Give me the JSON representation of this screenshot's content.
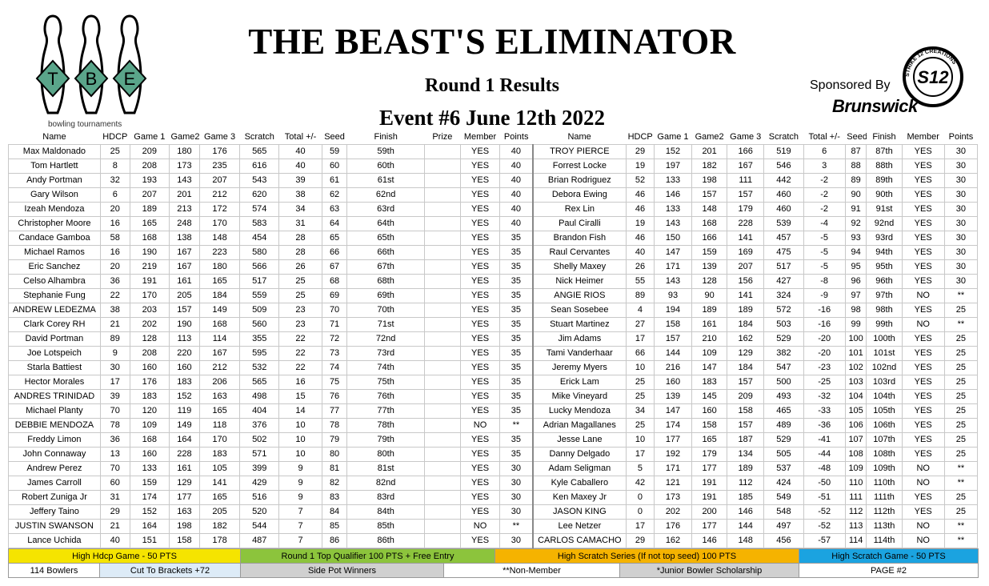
{
  "header": {
    "logo_text": "bowling tournaments",
    "logo_letters": [
      "T",
      "B",
      "E"
    ],
    "title": "THE BEAST'S ELIMINATOR",
    "subtitle": "Round 1 Results",
    "event": "Event #6 June 12th 2022",
    "sponsor_label": "Sponsored By",
    "sponsor_name": "Brunswick",
    "badge_text": "S12",
    "badge_ring_text": "STRIKE 12 CREATIONS"
  },
  "colors": {
    "logo_green": "#5aa58a",
    "yellow": "#f5e400",
    "green": "#8cc43c",
    "orange": "#f5b300",
    "blue": "#1ba3e0",
    "light_blue": "#ddebf7",
    "gray": "#d0d0d0"
  },
  "left_headers": [
    "Name",
    "HDCP",
    "Game 1",
    "Game2",
    "Game 3",
    "Scratch",
    "Total +/-",
    "Seed",
    "Finish",
    "Prize",
    "Member",
    "Points"
  ],
  "right_headers": [
    "Name",
    "HDCP",
    "Game 1",
    "Game2",
    "Game 3",
    "Scratch",
    "Total +/-",
    "Seed",
    "Finish",
    "Member",
    "Points"
  ],
  "left_rows": [
    [
      "Max Maldonado",
      "25",
      "209",
      "180",
      "176",
      "565",
      "40",
      "59",
      "59th",
      "",
      "YES",
      "40"
    ],
    [
      "Tom Hartlett",
      "8",
      "208",
      "173",
      "235",
      "616",
      "40",
      "60",
      "60th",
      "",
      "YES",
      "40"
    ],
    [
      "Andy Portman",
      "32",
      "193",
      "143",
      "207",
      "543",
      "39",
      "61",
      "61st",
      "",
      "YES",
      "40"
    ],
    [
      "Gary Wilson",
      "6",
      "207",
      "201",
      "212",
      "620",
      "38",
      "62",
      "62nd",
      "",
      "YES",
      "40"
    ],
    [
      "Izeah Mendoza",
      "20",
      "189",
      "213",
      "172",
      "574",
      "34",
      "63",
      "63rd",
      "",
      "YES",
      "40"
    ],
    [
      "Christopher Moore",
      "16",
      "165",
      "248",
      "170",
      "583",
      "31",
      "64",
      "64th",
      "",
      "YES",
      "40"
    ],
    [
      "Candace Gamboa",
      "58",
      "168",
      "138",
      "148",
      "454",
      "28",
      "65",
      "65th",
      "",
      "YES",
      "35"
    ],
    [
      "Michael Ramos",
      "16",
      "190",
      "167",
      "223",
      "580",
      "28",
      "66",
      "66th",
      "",
      "YES",
      "35"
    ],
    [
      "Eric Sanchez",
      "20",
      "219",
      "167",
      "180",
      "566",
      "26",
      "67",
      "67th",
      "",
      "YES",
      "35"
    ],
    [
      "Celso Alhambra",
      "36",
      "191",
      "161",
      "165",
      "517",
      "25",
      "68",
      "68th",
      "",
      "YES",
      "35"
    ],
    [
      "Stephanie Fung",
      "22",
      "170",
      "205",
      "184",
      "559",
      "25",
      "69",
      "69th",
      "",
      "YES",
      "35"
    ],
    [
      "ANDREW LEDEZMA",
      "38",
      "203",
      "157",
      "149",
      "509",
      "23",
      "70",
      "70th",
      "",
      "YES",
      "35"
    ],
    [
      "Clark Corey RH",
      "21",
      "202",
      "190",
      "168",
      "560",
      "23",
      "71",
      "71st",
      "",
      "YES",
      "35"
    ],
    [
      "David Portman",
      "89",
      "128",
      "113",
      "114",
      "355",
      "22",
      "72",
      "72nd",
      "",
      "YES",
      "35"
    ],
    [
      "Joe Lotspeich",
      "9",
      "208",
      "220",
      "167",
      "595",
      "22",
      "73",
      "73rd",
      "",
      "YES",
      "35"
    ],
    [
      "Starla Battiest",
      "30",
      "160",
      "160",
      "212",
      "532",
      "22",
      "74",
      "74th",
      "",
      "YES",
      "35"
    ],
    [
      "Hector Morales",
      "17",
      "176",
      "183",
      "206",
      "565",
      "16",
      "75",
      "75th",
      "",
      "YES",
      "35"
    ],
    [
      "ANDRES TRINIDAD",
      "39",
      "183",
      "152",
      "163",
      "498",
      "15",
      "76",
      "76th",
      "",
      "YES",
      "35"
    ],
    [
      "Michael Planty",
      "70",
      "120",
      "119",
      "165",
      "404",
      "14",
      "77",
      "77th",
      "",
      "YES",
      "35"
    ],
    [
      "DEBBIE MENDOZA",
      "78",
      "109",
      "149",
      "118",
      "376",
      "10",
      "78",
      "78th",
      "",
      "NO",
      "**"
    ],
    [
      "Freddy Limon",
      "36",
      "168",
      "164",
      "170",
      "502",
      "10",
      "79",
      "79th",
      "",
      "YES",
      "35"
    ],
    [
      "John Connaway",
      "13",
      "160",
      "228",
      "183",
      "571",
      "10",
      "80",
      "80th",
      "",
      "YES",
      "35"
    ],
    [
      "Andrew Perez",
      "70",
      "133",
      "161",
      "105",
      "399",
      "9",
      "81",
      "81st",
      "",
      "YES",
      "30"
    ],
    [
      "James Carroll",
      "60",
      "159",
      "129",
      "141",
      "429",
      "9",
      "82",
      "82nd",
      "",
      "YES",
      "30"
    ],
    [
      "Robert Zuniga Jr",
      "31",
      "174",
      "177",
      "165",
      "516",
      "9",
      "83",
      "83rd",
      "",
      "YES",
      "30"
    ],
    [
      "Jeffery Taino",
      "29",
      "152",
      "163",
      "205",
      "520",
      "7",
      "84",
      "84th",
      "",
      "YES",
      "30"
    ],
    [
      "JUSTIN SWANSON",
      "21",
      "164",
      "198",
      "182",
      "544",
      "7",
      "85",
      "85th",
      "",
      "NO",
      "**"
    ],
    [
      "Lance Uchida",
      "40",
      "151",
      "158",
      "178",
      "487",
      "7",
      "86",
      "86th",
      "",
      "YES",
      "30"
    ]
  ],
  "right_rows": [
    [
      "TROY PIERCE",
      "29",
      "152",
      "201",
      "166",
      "519",
      "6",
      "87",
      "87th",
      "YES",
      "30"
    ],
    [
      "Forrest Locke",
      "19",
      "197",
      "182",
      "167",
      "546",
      "3",
      "88",
      "88th",
      "YES",
      "30"
    ],
    [
      "Brian Rodriguez",
      "52",
      "133",
      "198",
      "111",
      "442",
      "-2",
      "89",
      "89th",
      "YES",
      "30"
    ],
    [
      "Debora Ewing",
      "46",
      "146",
      "157",
      "157",
      "460",
      "-2",
      "90",
      "90th",
      "YES",
      "30"
    ],
    [
      "Rex Lin",
      "46",
      "133",
      "148",
      "179",
      "460",
      "-2",
      "91",
      "91st",
      "YES",
      "30"
    ],
    [
      "Paul Ciralli",
      "19",
      "143",
      "168",
      "228",
      "539",
      "-4",
      "92",
      "92nd",
      "YES",
      "30"
    ],
    [
      "Brandon Fish",
      "46",
      "150",
      "166",
      "141",
      "457",
      "-5",
      "93",
      "93rd",
      "YES",
      "30"
    ],
    [
      "Raul Cervantes",
      "40",
      "147",
      "159",
      "169",
      "475",
      "-5",
      "94",
      "94th",
      "YES",
      "30"
    ],
    [
      "Shelly Maxey",
      "26",
      "171",
      "139",
      "207",
      "517",
      "-5",
      "95",
      "95th",
      "YES",
      "30"
    ],
    [
      "Nick Heimer",
      "55",
      "143",
      "128",
      "156",
      "427",
      "-8",
      "96",
      "96th",
      "YES",
      "30"
    ],
    [
      "ANGIE RIOS",
      "89",
      "93",
      "90",
      "141",
      "324",
      "-9",
      "97",
      "97th",
      "NO",
      "**"
    ],
    [
      "Sean Sosebee",
      "4",
      "194",
      "189",
      "189",
      "572",
      "-16",
      "98",
      "98th",
      "YES",
      "25"
    ],
    [
      "Stuart Martinez",
      "27",
      "158",
      "161",
      "184",
      "503",
      "-16",
      "99",
      "99th",
      "NO",
      "**"
    ],
    [
      "Jim Adams",
      "17",
      "157",
      "210",
      "162",
      "529",
      "-20",
      "100",
      "100th",
      "YES",
      "25"
    ],
    [
      "Tami Vanderhaar",
      "66",
      "144",
      "109",
      "129",
      "382",
      "-20",
      "101",
      "101st",
      "YES",
      "25"
    ],
    [
      "Jeremy Myers",
      "10",
      "216",
      "147",
      "184",
      "547",
      "-23",
      "102",
      "102nd",
      "YES",
      "25"
    ],
    [
      "Erick Lam",
      "25",
      "160",
      "183",
      "157",
      "500",
      "-25",
      "103",
      "103rd",
      "YES",
      "25"
    ],
    [
      "Mike Vineyard",
      "25",
      "139",
      "145",
      "209",
      "493",
      "-32",
      "104",
      "104th",
      "YES",
      "25"
    ],
    [
      "Lucky Mendoza",
      "34",
      "147",
      "160",
      "158",
      "465",
      "-33",
      "105",
      "105th",
      "YES",
      "25"
    ],
    [
      "Adrian Magallanes",
      "25",
      "174",
      "158",
      "157",
      "489",
      "-36",
      "106",
      "106th",
      "YES",
      "25"
    ],
    [
      "Jesse Lane",
      "10",
      "177",
      "165",
      "187",
      "529",
      "-41",
      "107",
      "107th",
      "YES",
      "25"
    ],
    [
      "Danny Delgado",
      "17",
      "192",
      "179",
      "134",
      "505",
      "-44",
      "108",
      "108th",
      "YES",
      "25"
    ],
    [
      "Adam Seligman",
      "5",
      "171",
      "177",
      "189",
      "537",
      "-48",
      "109",
      "109th",
      "NO",
      "**"
    ],
    [
      "Kyle Caballero",
      "42",
      "121",
      "191",
      "112",
      "424",
      "-50",
      "110",
      "110th",
      "NO",
      "**"
    ],
    [
      "Ken Maxey Jr",
      "0",
      "173",
      "191",
      "185",
      "549",
      "-51",
      "111",
      "111th",
      "YES",
      "25"
    ],
    [
      "JASON KING",
      "0",
      "202",
      "200",
      "146",
      "548",
      "-52",
      "112",
      "112th",
      "YES",
      "25"
    ],
    [
      "Lee Netzer",
      "17",
      "176",
      "177",
      "144",
      "497",
      "-52",
      "113",
      "113th",
      "NO",
      "**"
    ],
    [
      "CARLOS CAMACHO",
      "29",
      "162",
      "146",
      "148",
      "456",
      "-57",
      "114",
      "114th",
      "NO",
      "**"
    ]
  ],
  "legend": [
    {
      "text": "High Hdcp Game - 50 PTS",
      "color": "#f5e400"
    },
    {
      "text": "Round 1 Top Qualifier  100 PTS + Free Entry",
      "color": "#8cc43c"
    },
    {
      "text": "High Scratch Series (If not top seed) 100 PTS",
      "color": "#f5b300"
    },
    {
      "text": "High Scratch Game - 50 PTS",
      "color": "#1ba3e0"
    }
  ],
  "footer": {
    "bowlers": "114 Bowlers",
    "brackets": "Cut To Brackets +72",
    "side_pot": "Side Pot Winners",
    "non_member": "**Non-Member",
    "junior": "*Junior Bowler Scholarship",
    "page": "PAGE #2"
  }
}
